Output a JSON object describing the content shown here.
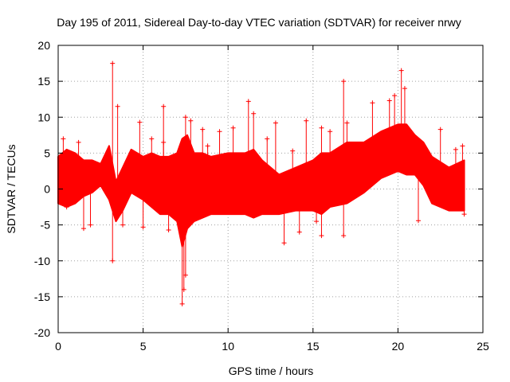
{
  "chart_data": {
    "type": "scatter",
    "title": "Day 195 of 2011, Sidereal Day-to-day VTEC variation (SDTVAR) for receiver nrwy",
    "xlabel": "GPS time / hours",
    "ylabel": "SDTVAR / TECUs",
    "xlim": [
      0,
      25
    ],
    "ylim": [
      -20,
      20
    ],
    "xticks": [
      "0",
      "5",
      "10",
      "15",
      "20",
      "25"
    ],
    "yticks": [
      "-20",
      "-15",
      "-10",
      "-5",
      "0",
      "5",
      "10",
      "15",
      "20"
    ],
    "grid": true,
    "marker": "+",
    "colors": {
      "series": "#ff0000",
      "grid": "#a0a0a0",
      "axis": "#000000"
    },
    "envelope": {
      "x": [
        0.0,
        0.5,
        1.0,
        1.5,
        2.0,
        2.5,
        3.0,
        3.4,
        3.8,
        4.3,
        5.0,
        5.5,
        6.0,
        6.5,
        7.0,
        7.3,
        7.6,
        8.0,
        8.5,
        9.0,
        10.0,
        11.0,
        11.5,
        12.0,
        13.0,
        14.0,
        15.0,
        15.5,
        16.0,
        17.0,
        18.0,
        19.0,
        19.5,
        20.0,
        20.5,
        21.0,
        21.5,
        22.0,
        23.0,
        23.9
      ],
      "upper": [
        4.5,
        5.5,
        5.0,
        4.0,
        4.0,
        3.5,
        6.0,
        1.0,
        3.0,
        5.5,
        4.5,
        5.0,
        4.5,
        4.5,
        5.0,
        7.0,
        7.5,
        5.0,
        5.0,
        4.5,
        5.0,
        5.0,
        5.5,
        4.0,
        2.0,
        3.0,
        4.0,
        5.0,
        5.0,
        6.5,
        6.5,
        8.0,
        8.5,
        9.0,
        9.0,
        7.5,
        6.5,
        4.5,
        3.0,
        4.0
      ],
      "lower": [
        -2.0,
        -2.5,
        -2.0,
        -1.0,
        -0.5,
        0.5,
        -1.5,
        -4.5,
        -3.0,
        -0.5,
        -1.5,
        -2.5,
        -3.5,
        -3.5,
        -4.5,
        -8.0,
        -5.5,
        -4.5,
        -4.0,
        -3.5,
        -3.5,
        -3.5,
        -4.0,
        -3.5,
        -3.5,
        -3.0,
        -3.0,
        -3.5,
        -2.5,
        -2.0,
        -0.5,
        1.5,
        2.0,
        2.5,
        2.0,
        2.0,
        0.5,
        -2.0,
        -3.0,
        -3.0
      ]
    },
    "spikes": [
      {
        "x": 0.3,
        "y": 7.0
      },
      {
        "x": 0.5,
        "y": -2.5
      },
      {
        "x": 1.2,
        "y": 6.5
      },
      {
        "x": 1.5,
        "y": -5.5
      },
      {
        "x": 1.9,
        "y": -5.0
      },
      {
        "x": 3.2,
        "y": 17.5
      },
      {
        "x": 3.2,
        "y": -10.0
      },
      {
        "x": 3.5,
        "y": 11.5
      },
      {
        "x": 3.8,
        "y": -5.0
      },
      {
        "x": 4.8,
        "y": 9.3
      },
      {
        "x": 5.0,
        "y": -5.3
      },
      {
        "x": 5.5,
        "y": 7.0
      },
      {
        "x": 6.2,
        "y": 11.5
      },
      {
        "x": 6.2,
        "y": 6.5
      },
      {
        "x": 6.5,
        "y": -5.7
      },
      {
        "x": 7.3,
        "y": -16.0
      },
      {
        "x": 7.4,
        "y": -14.0
      },
      {
        "x": 7.5,
        "y": -12.0
      },
      {
        "x": 7.5,
        "y": 10.0
      },
      {
        "x": 7.8,
        "y": 9.5
      },
      {
        "x": 8.5,
        "y": 8.3
      },
      {
        "x": 8.8,
        "y": 6.0
      },
      {
        "x": 9.5,
        "y": 8.0
      },
      {
        "x": 10.3,
        "y": 8.5
      },
      {
        "x": 11.2,
        "y": 12.2
      },
      {
        "x": 11.5,
        "y": 10.5
      },
      {
        "x": 12.3,
        "y": 7.0
      },
      {
        "x": 12.8,
        "y": 9.2
      },
      {
        "x": 13.3,
        "y": -7.5
      },
      {
        "x": 13.8,
        "y": 5.3
      },
      {
        "x": 14.2,
        "y": -6.0
      },
      {
        "x": 14.6,
        "y": 9.5
      },
      {
        "x": 15.2,
        "y": -4.5
      },
      {
        "x": 15.5,
        "y": -6.5
      },
      {
        "x": 15.5,
        "y": 8.5
      },
      {
        "x": 16.0,
        "y": 8.0
      },
      {
        "x": 16.8,
        "y": 15.0
      },
      {
        "x": 16.8,
        "y": -6.5
      },
      {
        "x": 17.0,
        "y": 9.2
      },
      {
        "x": 18.5,
        "y": 12.0
      },
      {
        "x": 19.5,
        "y": 12.3
      },
      {
        "x": 19.8,
        "y": 13.0
      },
      {
        "x": 20.2,
        "y": 16.5
      },
      {
        "x": 20.4,
        "y": 14.0
      },
      {
        "x": 21.2,
        "y": -4.4
      },
      {
        "x": 22.5,
        "y": 8.3
      },
      {
        "x": 23.4,
        "y": 5.5
      },
      {
        "x": 23.8,
        "y": 6.0
      },
      {
        "x": 23.9,
        "y": -3.5
      }
    ]
  }
}
